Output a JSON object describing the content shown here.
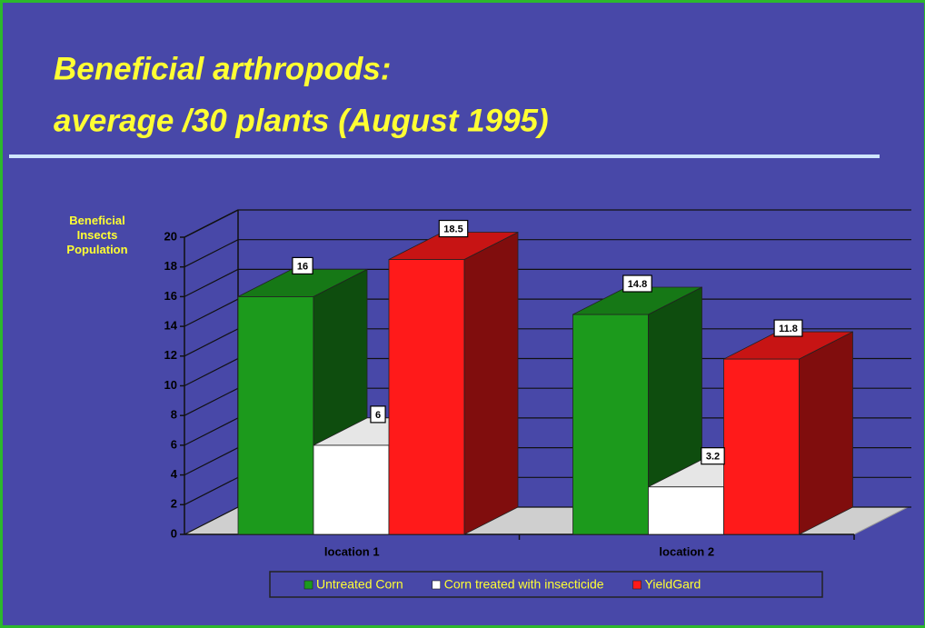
{
  "chart_data": {
    "type": "bar3d",
    "title": [
      "Beneficial arthropods:",
      "average /30 plants (August 1995)"
    ],
    "y_label": "Beneficial Insects Population",
    "categories": [
      "location 1",
      "location 2"
    ],
    "series": [
      {
        "name": "Untreated Corn",
        "color": "#1c9a1c",
        "values": [
          16,
          14.8
        ]
      },
      {
        "name": "Corn treated with insecticide",
        "color": "#ffffff",
        "values": [
          6,
          3.2
        ]
      },
      {
        "name": "YieldGard",
        "color": "#ff1a1a",
        "values": [
          18.5,
          11.8
        ]
      }
    ],
    "ylim": [
      0,
      20
    ],
    "yticks": [
      0,
      2,
      4,
      6,
      8,
      10,
      12,
      14,
      16,
      18,
      20
    ],
    "grid": true,
    "legend": "bottom"
  }
}
